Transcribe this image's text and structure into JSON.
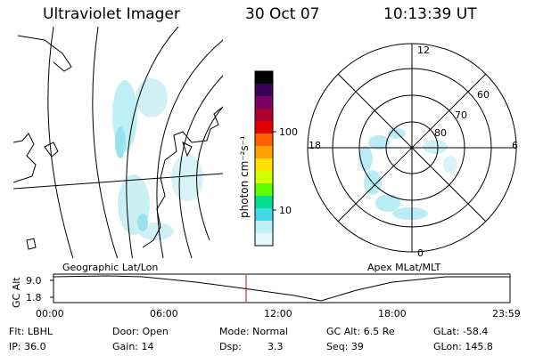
{
  "header": {
    "instrument": "Ultraviolet Imager",
    "date": "30 Oct 07",
    "time": "10:13:39 UT"
  },
  "map_label": "Geographic Lat/Lon",
  "polar": {
    "label": "Apex MLat/MLT",
    "mlt_labels": [
      "12",
      "18",
      "6",
      "0"
    ],
    "lat_labels": [
      "60",
      "70",
      "80"
    ]
  },
  "colorbar": {
    "unit": "photon cm⁻²s⁻¹",
    "ticks": [
      "100",
      "10"
    ],
    "colors": [
      "#000000",
      "#3a005a",
      "#7a0068",
      "#b00030",
      "#e00000",
      "#ff6000",
      "#ffa000",
      "#ffe000",
      "#d0ff00",
      "#60ff00",
      "#00e090",
      "#40d8e8",
      "#bff0f8",
      "#e0f8fc"
    ]
  },
  "timeline": {
    "y_label": "GC Alt",
    "y_ticks": [
      "9.0",
      "1.8"
    ],
    "x_ticks": [
      "00:00",
      "06:00",
      "12:00",
      "18:00",
      "23:59"
    ],
    "current_time_marker_color": "#d00000"
  },
  "info": {
    "row1": [
      "Flt: LBHL",
      "Door: Open",
      "Mode: Normal",
      "GC Alt: 6.5 Re",
      "GLat: -58.4"
    ],
    "row2": [
      "IP: 36.0",
      "Gain: 14",
      "Dsp:",
      "3.3",
      "Seq: 39",
      "GLon: 145.8"
    ]
  }
}
